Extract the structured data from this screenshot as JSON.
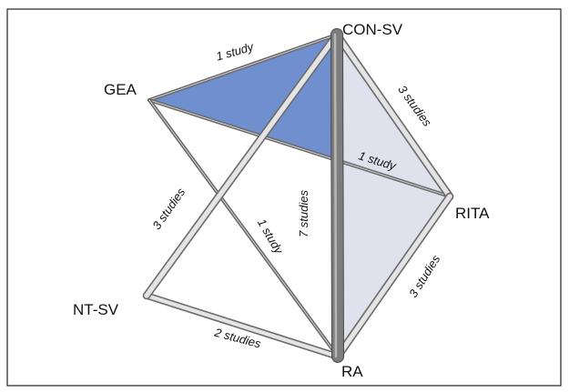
{
  "nodes": [
    {
      "id": "con_sv",
      "label": "CON-SV"
    },
    {
      "id": "gea",
      "label": "GEA"
    },
    {
      "id": "rita",
      "label": "RITA"
    },
    {
      "id": "nt_sv",
      "label": "NT-SV"
    },
    {
      "id": "ra",
      "label": "RA"
    }
  ],
  "edges": [
    {
      "from": "gea",
      "to": "con_sv",
      "studies": 1,
      "label": "1 study"
    },
    {
      "from": "con_sv",
      "to": "rita",
      "studies": 3,
      "label": "3 studies"
    },
    {
      "from": "gea",
      "to": "rita",
      "studies": 1,
      "label": "1 study"
    },
    {
      "from": "nt_sv",
      "to": "con_sv",
      "studies": 3,
      "label": "3 studies"
    },
    {
      "from": "gea",
      "to": "ra",
      "studies": 1,
      "label": "1 study"
    },
    {
      "from": "con_sv",
      "to": "ra",
      "studies": 7,
      "label": "7 studies"
    },
    {
      "from": "rita",
      "to": "ra",
      "studies": 3,
      "label": "3 studies"
    },
    {
      "from": "nt_sv",
      "to": "ra",
      "studies": 2,
      "label": "2 studies"
    }
  ],
  "loops": [
    {
      "nodes": [
        "gea",
        "con_sv",
        "rita"
      ],
      "color": "#6f8fcf"
    },
    {
      "nodes": [
        "con_sv",
        "rita",
        "ra"
      ],
      "color": "#dfe1ec"
    }
  ]
}
